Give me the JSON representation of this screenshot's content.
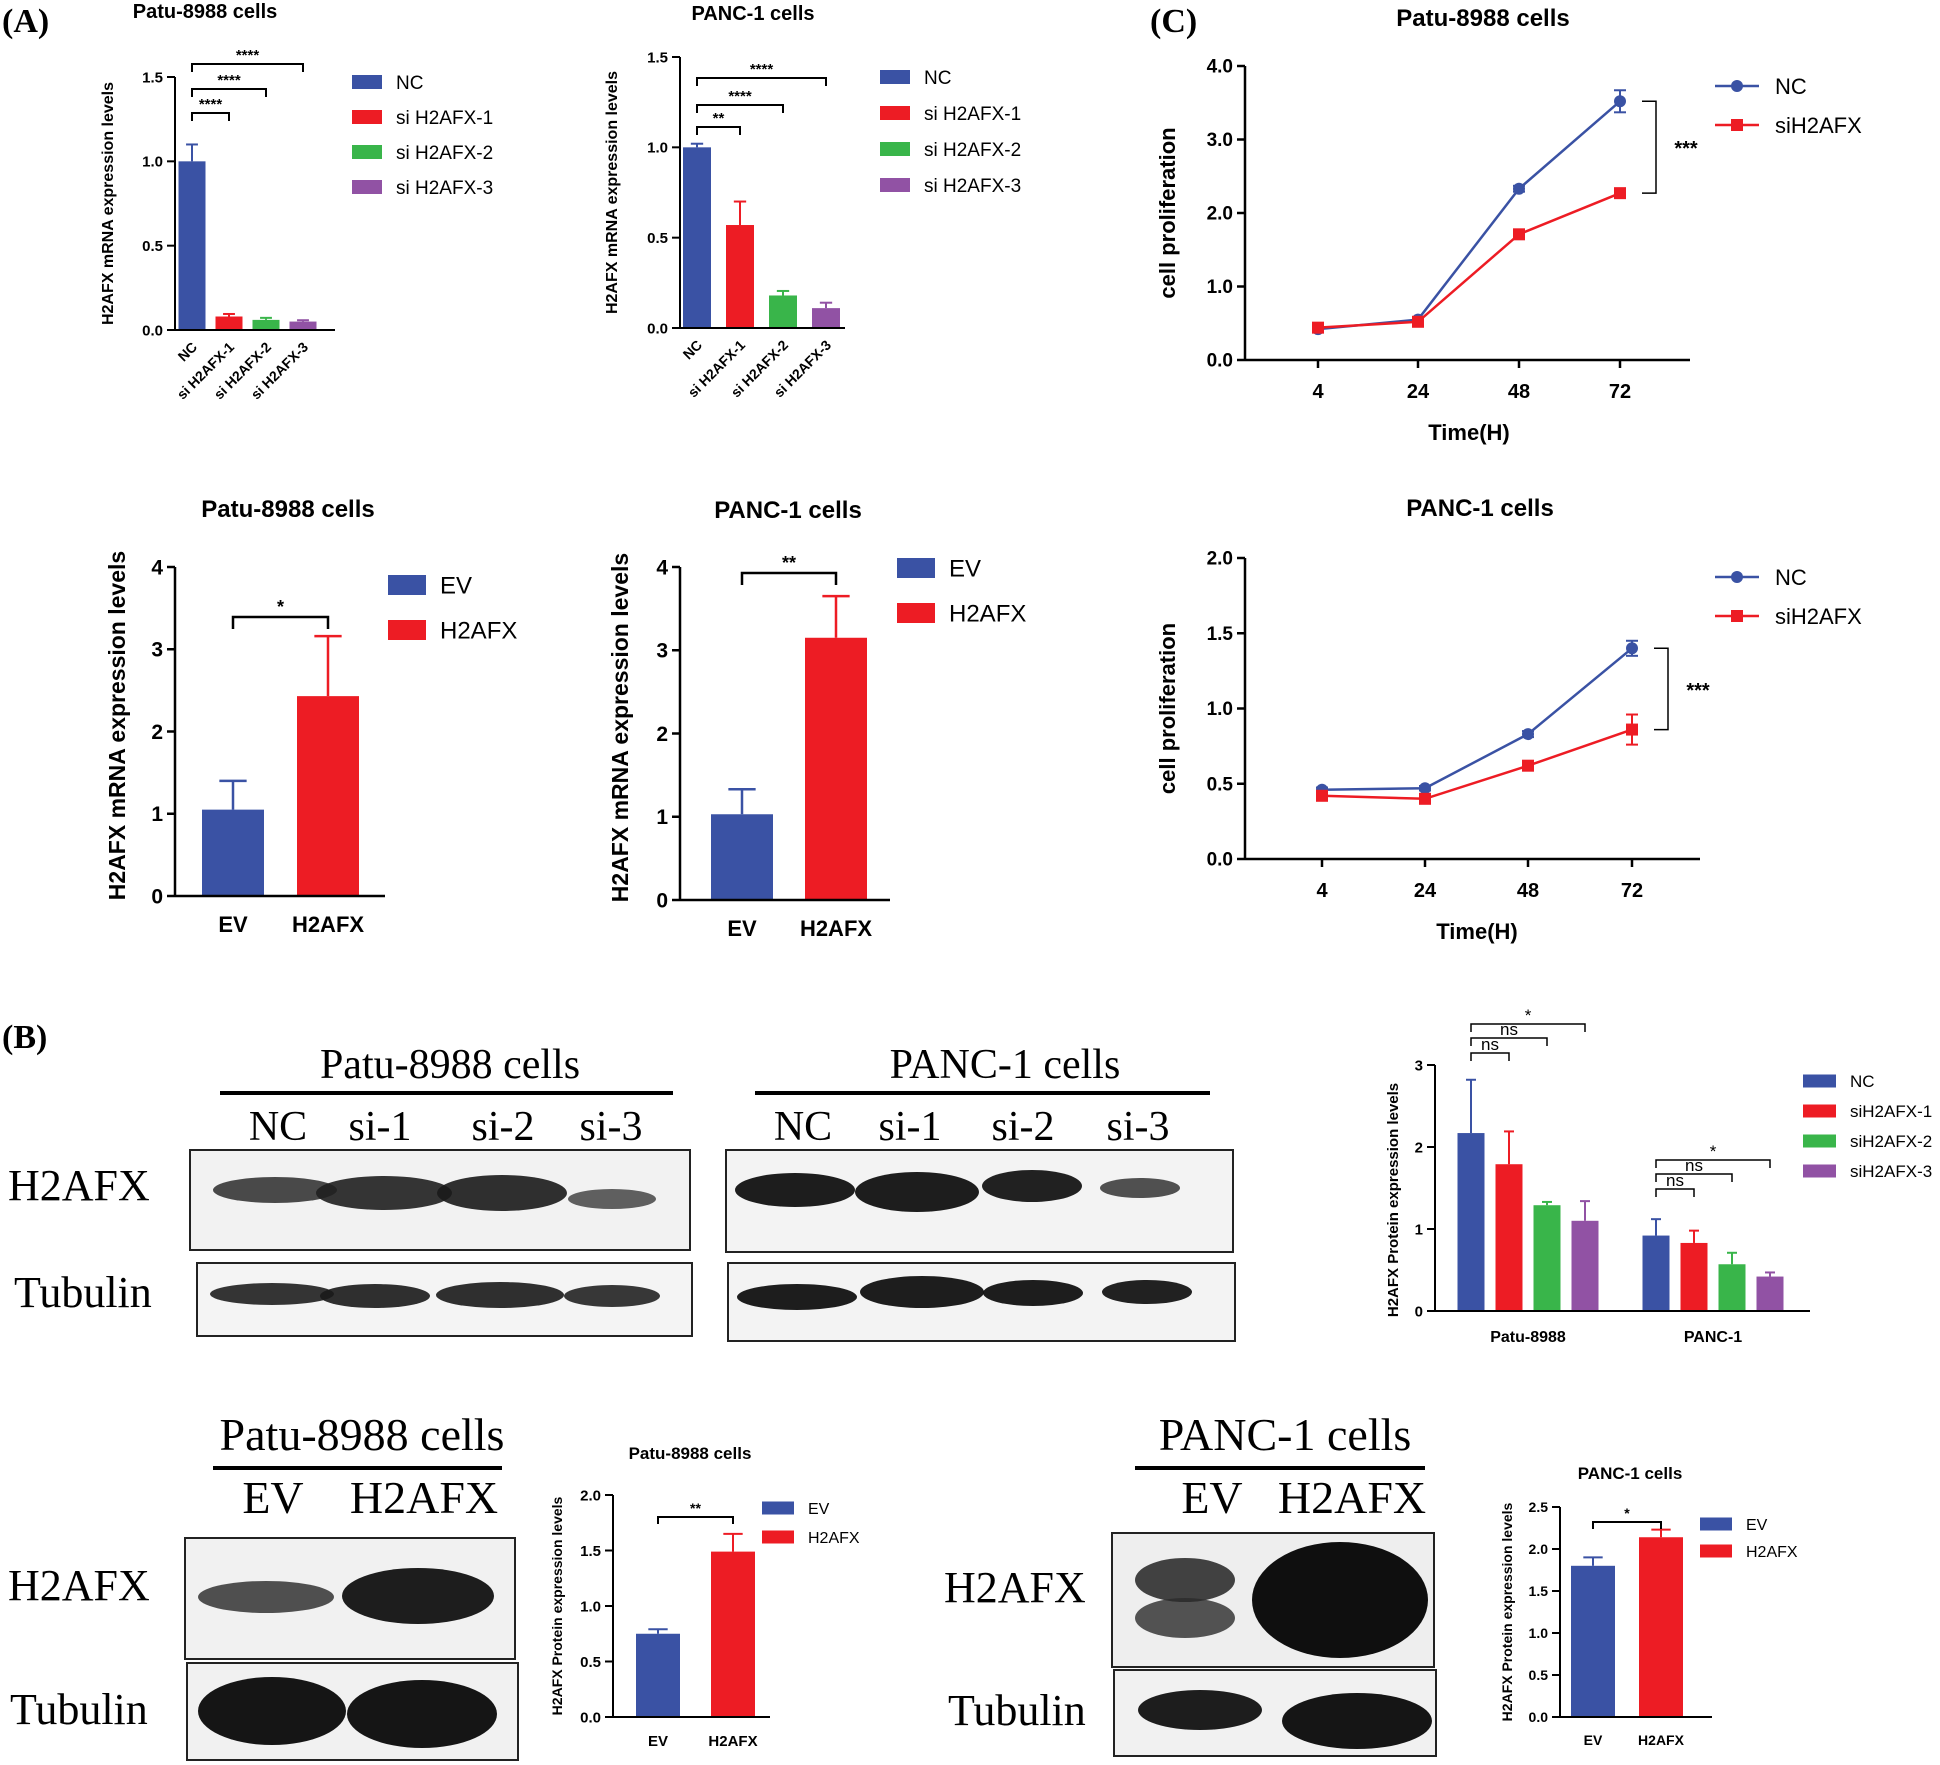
{
  "panel_labels": {
    "a": "(A)",
    "b": "(B)",
    "c": "(C)"
  },
  "colors": {
    "blue": "#3a52a4",
    "red": "#ed1c24",
    "green": "#39b54a",
    "purple": "#9152a4",
    "axis": "#000000"
  },
  "blots": {
    "top_left": {
      "title": "Patu-8988 cells",
      "lanes": [
        "NC",
        "si-1",
        "si-2",
        "si-3"
      ],
      "rows": [
        "H2AFX",
        "Tubulin"
      ]
    },
    "top_right": {
      "title": "PANC-1 cells",
      "lanes": [
        "NC",
        "si-1",
        "si-2",
        "si-3"
      ]
    },
    "bottom_left": {
      "title": "Patu-8988 cells",
      "lanes": [
        "EV",
        "H2AFX"
      ],
      "rows": [
        "H2AFX",
        "Tubulin"
      ]
    },
    "bottom_right": {
      "title": "PANC-1 cells",
      "lanes": [
        "EV",
        "H2AFX"
      ],
      "rows": [
        "H2AFX",
        "Tubulin"
      ]
    }
  },
  "chart_data": [
    {
      "id": "a1",
      "type": "bar",
      "title": "Patu-8988 cells",
      "ylabel": "H2AFX mRNA expression levels",
      "categories": [
        "NC",
        "si H2AFX-1",
        "si H2AFX-2",
        "si H2AFX-3"
      ],
      "values": [
        1.0,
        0.08,
        0.06,
        0.05
      ],
      "errors": [
        0.1,
        0.015,
        0.012,
        0.008
      ],
      "ylim": [
        0,
        1.5
      ],
      "yticks": [
        "0.0",
        "0.5",
        "1.0",
        "1.5"
      ],
      "legend": [
        "NC",
        "si H2AFX-1",
        "si H2AFX-2",
        "si H2AFX-3"
      ],
      "significance": [
        "****",
        "****",
        "****"
      ]
    },
    {
      "id": "a2",
      "type": "bar",
      "title": "PANC-1 cells",
      "ylabel": "H2AFX mRNA expression levels",
      "categories": [
        "NC",
        "si H2AFX-1",
        "si H2AFX-2",
        "si H2AFX-3"
      ],
      "values": [
        1.0,
        0.57,
        0.18,
        0.11
      ],
      "errors": [
        0.02,
        0.13,
        0.025,
        0.03
      ],
      "ylim": [
        0,
        1.5
      ],
      "yticks": [
        "0.0",
        "0.5",
        "1.0",
        "1.5"
      ],
      "legend": [
        "NC",
        "si H2AFX-1",
        "si H2AFX-2",
        "si H2AFX-3"
      ],
      "significance": [
        "**",
        "****",
        "****"
      ]
    },
    {
      "id": "a3",
      "type": "bar",
      "title": "Patu-8988 cells",
      "ylabel": "H2AFX mRNA expression levels",
      "categories": [
        "EV",
        "H2AFX"
      ],
      "values": [
        1.05,
        2.43
      ],
      "errors": [
        0.35,
        0.73
      ],
      "ylim": [
        0,
        4
      ],
      "yticks": [
        "0",
        "1",
        "2",
        "3",
        "4"
      ],
      "legend": [
        "EV",
        "H2AFX"
      ],
      "significance": [
        "*"
      ]
    },
    {
      "id": "a4",
      "type": "bar",
      "title": "PANC-1 cells",
      "ylabel": "H2AFX mRNA expression levels",
      "categories": [
        "EV",
        "H2AFX"
      ],
      "values": [
        1.03,
        3.15
      ],
      "errors": [
        0.3,
        0.5
      ],
      "ylim": [
        0,
        4
      ],
      "yticks": [
        "0",
        "1",
        "2",
        "3",
        "4"
      ],
      "legend": [
        "EV",
        "H2AFX"
      ],
      "significance": [
        "**"
      ]
    },
    {
      "id": "c1",
      "type": "line",
      "title": "Patu-8988 cells",
      "xlabel": "Time(H)",
      "ylabel": "cell proliferation",
      "x": [
        "4",
        "24",
        "48",
        "72"
      ],
      "series": [
        {
          "name": "NC",
          "values": [
            0.42,
            0.55,
            2.33,
            3.52
          ],
          "errors": [
            0.03,
            0.03,
            0.04,
            0.15
          ]
        },
        {
          "name": "siH2AFX",
          "values": [
            0.44,
            0.52,
            1.71,
            2.27
          ],
          "errors": [
            0.03,
            0.03,
            0.04,
            0.05
          ]
        }
      ],
      "ylim": [
        0,
        4
      ],
      "yticks": [
        "0.0",
        "1.0",
        "2.0",
        "3.0",
        "4.0"
      ],
      "significance": "***"
    },
    {
      "id": "c2",
      "type": "line",
      "title": "PANC-1 cells",
      "xlabel": "Time(H)",
      "ylabel": "cell proliferation",
      "x": [
        "4",
        "24",
        "48",
        "72"
      ],
      "series": [
        {
          "name": "NC",
          "values": [
            0.46,
            0.47,
            0.83,
            1.4
          ],
          "errors": [
            0.015,
            0.015,
            0.02,
            0.05
          ]
        },
        {
          "name": "siH2AFX",
          "values": [
            0.42,
            0.4,
            0.62,
            0.86
          ],
          "errors": [
            0.015,
            0.015,
            0.02,
            0.1
          ]
        }
      ],
      "ylim": [
        0,
        2
      ],
      "yticks": [
        "0.0",
        "0.5",
        "1.0",
        "1.5",
        "2.0"
      ],
      "significance": "***"
    },
    {
      "id": "b1",
      "type": "bar",
      "ylabel": "H2AFX Protein expression levels",
      "groups": [
        "Patu-8988",
        "PANC-1"
      ],
      "series": [
        {
          "name": "NC",
          "values": [
            2.17,
            0.92
          ],
          "errors": [
            0.65,
            0.2
          ]
        },
        {
          "name": "siH2AFX-1",
          "values": [
            1.79,
            0.83
          ],
          "errors": [
            0.4,
            0.15
          ]
        },
        {
          "name": "siH2AFX-2",
          "values": [
            1.29,
            0.57
          ],
          "errors": [
            0.04,
            0.14
          ]
        },
        {
          "name": "siH2AFX-3",
          "values": [
            1.1,
            0.42
          ],
          "errors": [
            0.24,
            0.05
          ]
        }
      ],
      "ylim": [
        0,
        3
      ],
      "yticks": [
        "0",
        "1",
        "2",
        "3"
      ],
      "significance": [
        [
          "ns",
          "ns",
          "*"
        ],
        [
          "ns",
          "ns",
          "*"
        ]
      ]
    },
    {
      "id": "b2",
      "type": "bar",
      "title": "Patu-8988 cells",
      "ylabel": "H2AFX Protein expression levels",
      "categories": [
        "EV",
        "H2AFX"
      ],
      "values": [
        0.75,
        1.49
      ],
      "errors": [
        0.04,
        0.16
      ],
      "ylim": [
        0,
        2
      ],
      "yticks": [
        "0.0",
        "0.5",
        "1.0",
        "1.5",
        "2.0"
      ],
      "legend": [
        "EV",
        "H2AFX"
      ],
      "significance": [
        "**"
      ]
    },
    {
      "id": "b3",
      "type": "bar",
      "title": "PANC-1 cells",
      "ylabel": "H2AFX Protein expression levels",
      "categories": [
        "EV",
        "H2AFX"
      ],
      "values": [
        1.8,
        2.14
      ],
      "errors": [
        0.1,
        0.09
      ],
      "ylim": [
        0,
        2.5
      ],
      "yticks": [
        "0.0",
        "0.5",
        "1.0",
        "1.5",
        "2.0",
        "2.5"
      ],
      "legend": [
        "EV",
        "H2AFX"
      ],
      "significance": [
        "*"
      ]
    }
  ]
}
